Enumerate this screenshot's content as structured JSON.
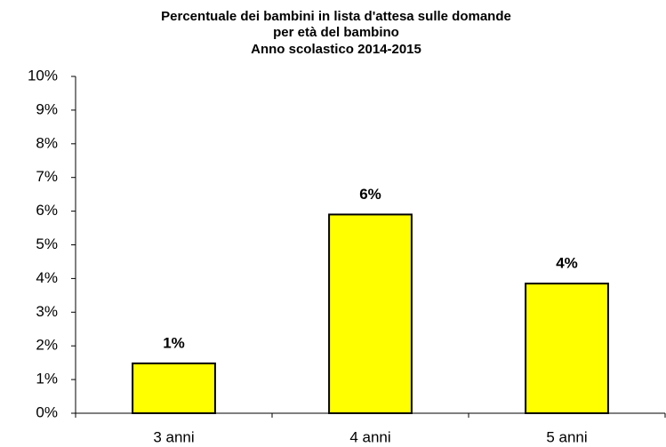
{
  "chart_data": {
    "type": "bar",
    "title": [
      "Percentuale dei bambini in lista d'attesa sulle domande",
      "per età del bambino",
      "Anno scolastico 2014-2015"
    ],
    "categories": [
      "3 anni",
      "4 anni",
      "5 anni"
    ],
    "values": [
      1.48,
      5.9,
      3.85
    ],
    "value_labels": [
      "1%",
      "6%",
      "4%"
    ],
    "color": "#ffff00",
    "ylim": [
      0,
      10
    ],
    "yticks": [
      {
        "value": 0,
        "label": "0%"
      },
      {
        "value": 1,
        "label": "1%"
      },
      {
        "value": 2,
        "label": "2%"
      },
      {
        "value": 3,
        "label": "3%"
      },
      {
        "value": 4,
        "label": "4%"
      },
      {
        "value": 5,
        "label": "5%"
      },
      {
        "value": 6,
        "label": "6%"
      },
      {
        "value": 7,
        "label": "7%"
      },
      {
        "value": 8,
        "label": "8%"
      },
      {
        "value": 9,
        "label": "9%"
      },
      {
        "value": 10,
        "label": "10%"
      }
    ],
    "grid": false
  }
}
